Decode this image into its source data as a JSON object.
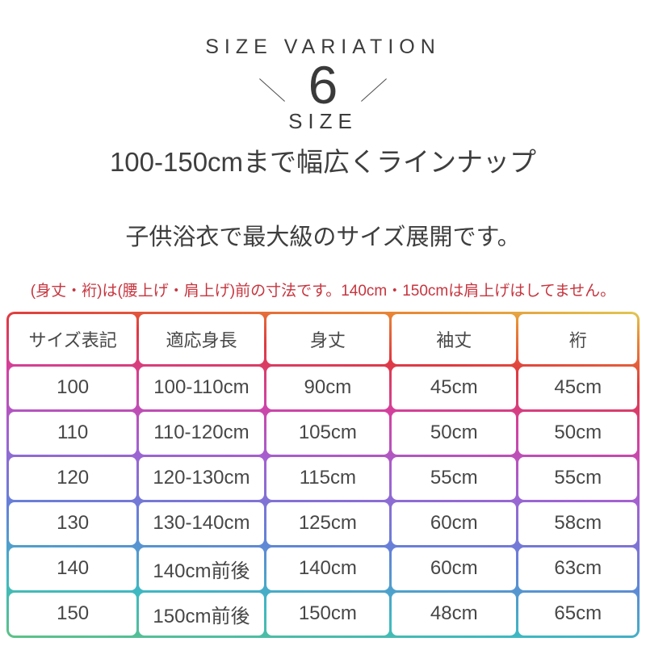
{
  "header": {
    "kicker": "SIZE VARIATION",
    "count": "6",
    "count_label": "SIZE",
    "subtitle": "100-150cmまで幅広くラインナップ",
    "description": "子供浴衣で最大級のサイズ展開です。"
  },
  "note": {
    "text": "(身丈・裄)は(腰上げ・肩上げ)前の寸法です。140cm・150cmは肩上げはしてません。",
    "color": "#c6353f"
  },
  "table": {
    "columns": [
      "サイズ表記",
      "適応身長",
      "身丈",
      "袖丈",
      "裄"
    ],
    "rows": [
      [
        "100",
        "100-110cm",
        "90cm",
        "45cm",
        "45cm"
      ],
      [
        "110",
        "110-120cm",
        "105cm",
        "50cm",
        "50cm"
      ],
      [
        "120",
        "120-130cm",
        "115cm",
        "55cm",
        "55cm"
      ],
      [
        "130",
        "130-140cm",
        "125cm",
        "60cm",
        "58cm"
      ],
      [
        "140",
        "140cm前後",
        "140cm",
        "60cm",
        "63cm"
      ],
      [
        "150",
        "150cm前後",
        "150cm",
        "48cm",
        "65cm"
      ]
    ]
  },
  "colors": {
    "text_dark": "#3e3e3e",
    "note_red": "#c6353f",
    "table_border_gradient": [
      "#6fc18f",
      "#3db4bd",
      "#7e96e0",
      "#a373d4",
      "#cc42a2",
      "#dd4040",
      "#e5883c",
      "#e2cc66"
    ]
  }
}
